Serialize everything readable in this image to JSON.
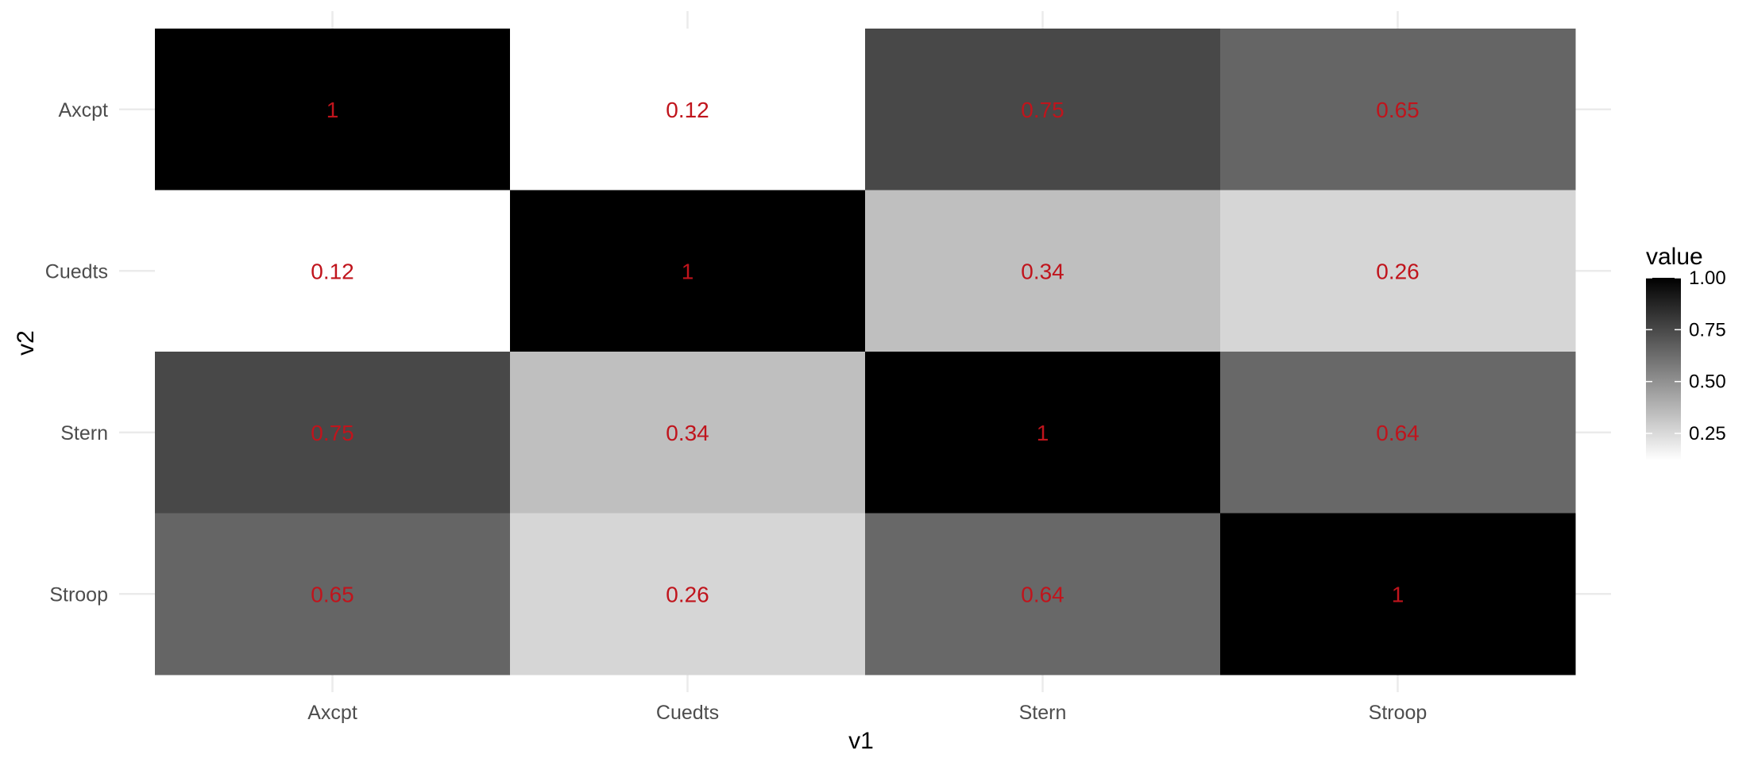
{
  "chart_data": {
    "type": "heatmap",
    "x_categories": [
      "Axcpt",
      "Cuedts",
      "Stern",
      "Stroop"
    ],
    "y_categories": [
      "Axcpt",
      "Cuedts",
      "Stern",
      "Stroop"
    ],
    "values": [
      [
        1,
        0.12,
        0.75,
        0.65
      ],
      [
        0.12,
        1,
        0.34,
        0.26
      ],
      [
        0.75,
        0.34,
        1,
        0.64
      ],
      [
        0.65,
        0.26,
        0.64,
        1
      ]
    ],
    "labels": [
      [
        "1",
        "0.12",
        "0.75",
        "0.65"
      ],
      [
        "0.12",
        "1",
        "0.34",
        "0.26"
      ],
      [
        "0.75",
        "0.34",
        "1",
        "0.64"
      ],
      [
        "0.65",
        "0.26",
        "0.64",
        "1"
      ]
    ],
    "xlabel": "v1",
    "ylabel": "v2",
    "legend": {
      "title": "value",
      "ticks": [
        "1.00",
        "0.75",
        "0.50",
        "0.25"
      ],
      "tick_values": [
        1.0,
        0.75,
        0.5,
        0.25
      ],
      "range": [
        0.12,
        1.0
      ],
      "placement": "right"
    },
    "colors": {
      "low": "#ffffff",
      "high": "#000000",
      "label": "#c0141c",
      "grid": "#ebebeb"
    },
    "grid": true
  }
}
